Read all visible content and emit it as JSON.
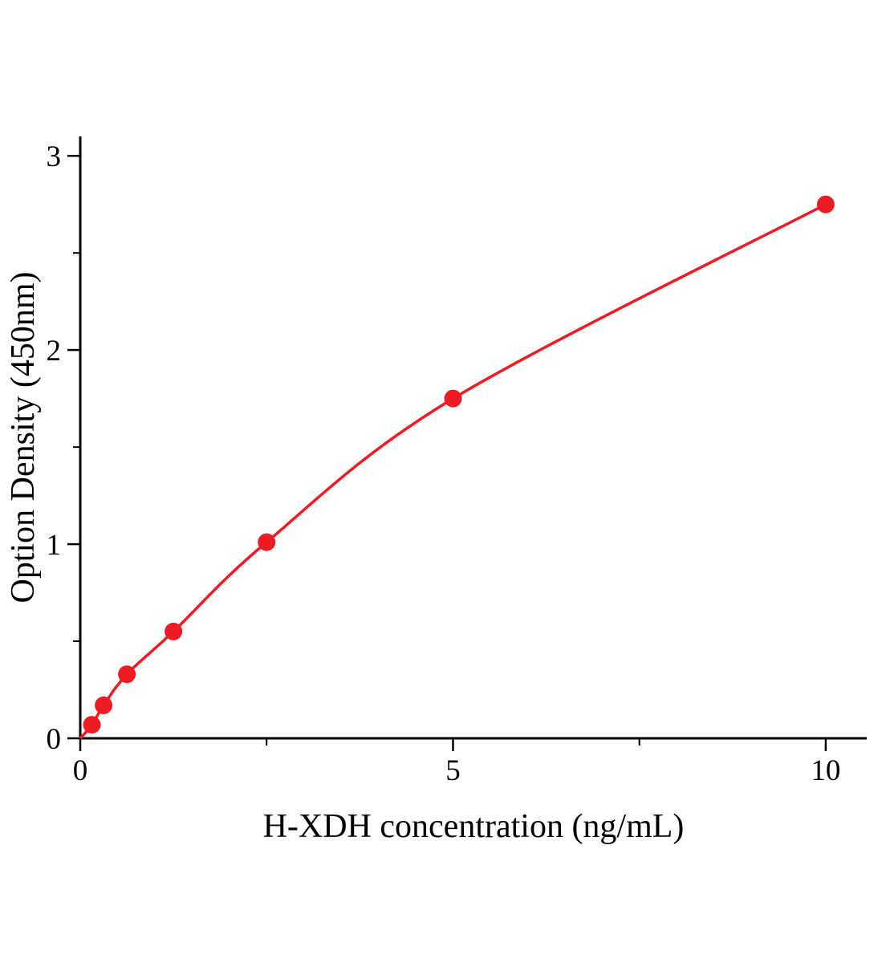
{
  "chart_data": {
    "type": "scatter",
    "title": "",
    "xlabel": "H-XDH concentration (ng/mL)",
    "ylabel": "Option Density (450nm)",
    "x": [
      0.156,
      0.313,
      0.625,
      1.25,
      2.5,
      5,
      10
    ],
    "y": [
      0.07,
      0.17,
      0.33,
      0.55,
      1.01,
      1.75,
      2.75
    ],
    "curve_start": [
      0,
      0
    ],
    "xlim": [
      0,
      10.55
    ],
    "ylim": [
      0,
      3.1
    ],
    "x_major_ticks": [
      0,
      5,
      10
    ],
    "x_minor_ticks": [
      2.5,
      7.5
    ],
    "y_major_ticks": [
      0,
      1,
      2,
      3
    ],
    "y_minor_ticks": [
      0.5,
      1.5,
      2.5
    ],
    "legend": null,
    "grid": false,
    "colors": {
      "line": "#ed1c24",
      "marker": "#ed1c24",
      "axis": "#000000"
    }
  }
}
